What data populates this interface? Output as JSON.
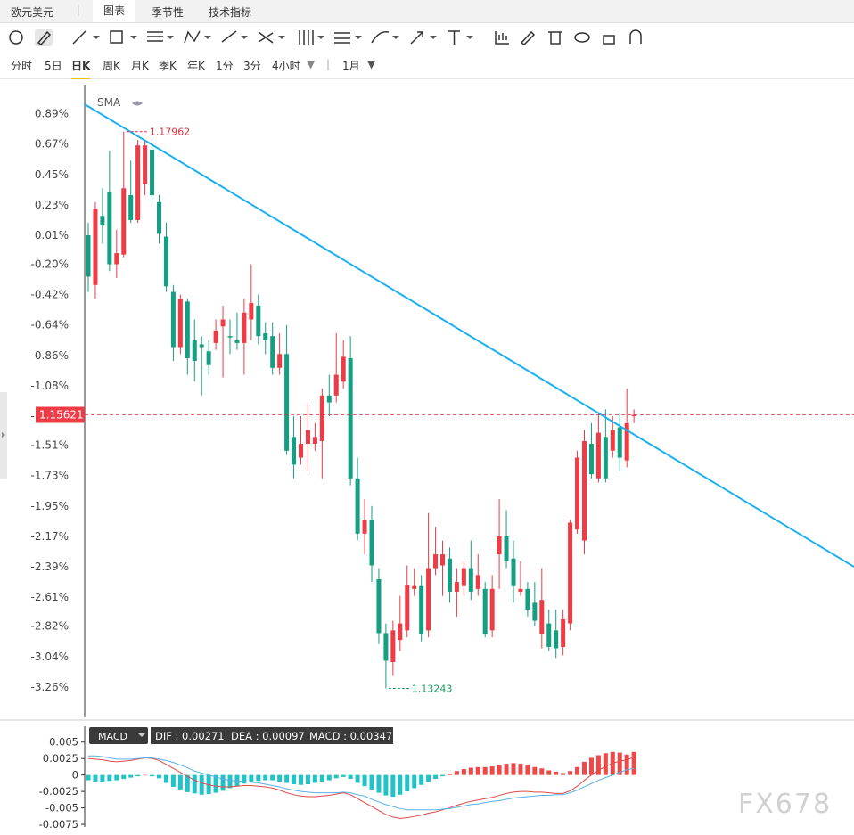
{
  "header": {
    "symbol": "欧元美元",
    "tabs": [
      "图表",
      "季节性",
      "技术指标"
    ]
  },
  "periods": [
    "分时",
    "5日",
    "日K",
    "周K",
    "月K",
    "季K",
    "年K",
    "1分",
    "3分",
    "4小时"
  ],
  "interval": "1月",
  "chart_data": [
    {
      "type": "candlestick",
      "indicator": "SMA",
      "up_color": "#ee3b45",
      "down_color": "#159e82",
      "open": [
        0.01,
        -0.35,
        0.15,
        0.32,
        -0.2,
        -0.13,
        0.3,
        0.12,
        0.38,
        0.63,
        0.25,
        0.0,
        -0.4,
        -0.8,
        -0.47,
        -0.75,
        -0.78,
        -0.83,
        -0.77,
        -0.65,
        -0.72,
        -0.75,
        -0.77,
        -0.6,
        -0.5,
        -0.7,
        -0.72,
        -0.95,
        -0.85,
        -1.45,
        -1.6,
        -1.5,
        -1.5,
        -1.48,
        -1.15,
        -1.15,
        -1.05,
        -0.88,
        -1.75,
        -2.15,
        -2.05,
        -2.48,
        -2.87,
        -3.08,
        -2.92,
        -2.85,
        -2.55,
        -2.53,
        -2.85,
        -2.4,
        -2.38,
        -2.33,
        -2.57,
        -2.53,
        -2.4,
        -2.55,
        -2.55,
        -2.85,
        -2.3,
        -2.17,
        -2.33,
        -2.57,
        -2.55,
        -2.65,
        -2.88,
        -2.8,
        -2.85,
        -2.97,
        -2.8,
        -2.12,
        -2.2,
        -1.5,
        -1.75,
        -1.45,
        -1.55,
        -1.38,
        -1.62,
        -1.3
      ],
      "high": [
        0.1,
        0.25,
        0.35,
        0.62,
        0.05,
        0.76,
        0.55,
        0.7,
        0.7,
        0.69,
        0.3,
        0.1,
        -0.35,
        -0.42,
        -0.45,
        -0.6,
        -0.72,
        -0.75,
        -0.6,
        -0.5,
        -0.6,
        -0.55,
        -0.45,
        -0.2,
        -0.42,
        -0.62,
        -0.62,
        -0.7,
        -0.64,
        -1.3,
        -1.3,
        -1.2,
        -1.35,
        -1.1,
        -1.0,
        -0.7,
        -0.75,
        -0.72,
        -1.6,
        -1.9,
        -1.95,
        -2.4,
        -2.8,
        -2.78,
        -2.6,
        -2.38,
        -2.4,
        -2.45,
        -2.0,
        -2.1,
        -2.2,
        -2.25,
        -2.4,
        -2.35,
        -2.2,
        -2.3,
        -2.5,
        -2.45,
        -1.9,
        -1.98,
        -2.2,
        -2.35,
        -2.5,
        -2.5,
        -2.4,
        -2.7,
        -2.7,
        -2.7,
        -2.05,
        -1.55,
        -1.4,
        -1.35,
        -1.28,
        -1.25,
        -1.3,
        -1.28,
        -1.1,
        -1.25
      ],
      "low": [
        -0.4,
        -0.45,
        -0.05,
        -0.25,
        -0.3,
        -0.15,
        0.1,
        0.1,
        0.3,
        0.25,
        -0.05,
        -0.4,
        -0.9,
        -0.85,
        -1.0,
        -1.05,
        -1.15,
        -1.0,
        -0.82,
        -1.02,
        -0.85,
        -0.82,
        -1.0,
        -0.75,
        -0.78,
        -0.85,
        -1.0,
        -1.0,
        -1.58,
        -1.75,
        -1.65,
        -1.7,
        -1.55,
        -1.75,
        -1.3,
        -1.2,
        -1.1,
        -1.8,
        -2.2,
        -2.3,
        -2.5,
        -2.95,
        -3.27,
        -3.18,
        -3.0,
        -2.9,
        -2.6,
        -2.93,
        -2.9,
        -2.45,
        -2.6,
        -2.65,
        -2.75,
        -2.6,
        -2.63,
        -2.6,
        -2.9,
        -2.9,
        -2.55,
        -2.4,
        -2.65,
        -2.6,
        -2.75,
        -2.82,
        -2.98,
        -3.0,
        -3.05,
        -3.03,
        -2.85,
        -2.15,
        -2.3,
        -1.75,
        -1.78,
        -1.78,
        -1.6,
        -1.7,
        -1.67,
        -1.35
      ],
      "close": [
        -0.29,
        0.2,
        0.08,
        -0.2,
        -0.12,
        0.35,
        0.12,
        0.66,
        0.66,
        0.3,
        0.02,
        -0.36,
        -0.8,
        -0.45,
        -0.88,
        -0.9,
        -0.8,
        -0.93,
        -0.68,
        -0.6,
        -0.73,
        -0.77,
        -0.55,
        -0.48,
        -0.72,
        -0.75,
        -0.95,
        -0.85,
        -1.55,
        -1.65,
        -1.5,
        -1.4,
        -1.45,
        -1.15,
        -1.2,
        -1.0,
        -0.87,
        -1.75,
        -2.15,
        -2.05,
        -2.38,
        -2.87,
        -3.07,
        -2.85,
        -2.8,
        -2.52,
        -2.53,
        -2.88,
        -2.4,
        -2.3,
        -2.3,
        -2.57,
        -2.5,
        -2.4,
        -2.57,
        -2.45,
        -2.88,
        -2.55,
        -2.17,
        -2.35,
        -2.53,
        -2.55,
        -2.7,
        -2.78,
        -2.63,
        -2.97,
        -2.98,
        -2.77,
        -2.07,
        -1.6,
        -1.48,
        -1.72,
        -1.42,
        -1.75,
        -1.4,
        -1.6,
        -1.35,
        -1.29
      ],
      "ylim": [
        -3.48,
        1.1
      ],
      "yticks": [
        {
          "value": 0.89,
          "label": "0.89%"
        },
        {
          "value": 0.67,
          "label": "0.67%"
        },
        {
          "value": 0.45,
          "label": "0.45%"
        },
        {
          "value": 0.23,
          "label": "0.23%"
        },
        {
          "value": 0.01,
          "label": "0.01%"
        },
        {
          "value": -0.2,
          "label": "-0.20%"
        },
        {
          "value": -0.42,
          "label": "-0.42%"
        },
        {
          "value": -0.64,
          "label": "-0.64%"
        },
        {
          "value": -0.86,
          "label": "-0.86%"
        },
        {
          "value": -1.08,
          "label": "-1.08%"
        },
        {
          "value": -1.3,
          "label": "-1.30%"
        },
        {
          "value": -1.51,
          "label": "-1.51%"
        },
        {
          "value": -1.73,
          "label": "-1.73%"
        },
        {
          "value": -1.95,
          "label": "-1.95%"
        },
        {
          "value": -2.17,
          "label": "-2.17%"
        },
        {
          "value": -2.39,
          "label": "-2.39%"
        },
        {
          "value": -2.61,
          "label": "-2.61%"
        },
        {
          "value": -2.82,
          "label": "-2.82%"
        },
        {
          "value": -3.04,
          "label": "-3.04%"
        },
        {
          "value": -3.26,
          "label": "-3.26%"
        }
      ],
      "current_price_label": "1.15621",
      "high_label": "1.17962",
      "low_label": "1.13243"
    },
    {
      "type": "macd",
      "title": "MACD",
      "dif_label": "DIF : 0.00271",
      "dea_label": "DEA : 0.00097",
      "macd_label": "MACD : 0.00347",
      "up_color": "#f04848",
      "down_color": "#20c4c8",
      "dif_color": "#e04a4a",
      "dea_color": "#5ab0e6",
      "histogram": [
        -0.0008,
        -0.001,
        -0.001,
        -0.0009,
        -0.0008,
        -0.0006,
        -0.0004,
        -0.0002,
        0.0,
        -0.0002,
        -0.0005,
        -0.0012,
        -0.0018,
        -0.0022,
        -0.0026,
        -0.0028,
        -0.003,
        -0.0029,
        -0.0027,
        -0.0024,
        -0.002,
        -0.0017,
        -0.0013,
        -0.001,
        -0.0009,
        -0.0008,
        -0.0008,
        -0.001,
        -0.0012,
        -0.0014,
        -0.0015,
        -0.0014,
        -0.0012,
        -0.001,
        -0.0008,
        -0.0005,
        -0.0003,
        -0.0006,
        -0.0012,
        -0.0017,
        -0.0022,
        -0.0027,
        -0.0031,
        -0.0033,
        -0.003,
        -0.0025,
        -0.002,
        -0.0015,
        -0.001,
        -0.0006,
        -0.0002,
        0.0002,
        0.0006,
        0.0009,
        0.0011,
        0.0012,
        0.0012,
        0.0013,
        0.0015,
        0.0017,
        0.0018,
        0.0017,
        0.0015,
        0.0012,
        0.001,
        0.0007,
        0.0005,
        0.0003,
        0.0006,
        0.0012,
        0.002,
        0.0026,
        0.003,
        0.0033,
        0.0035,
        0.0034,
        0.0031,
        0.0035
      ],
      "dif": [
        0.0025,
        0.0024,
        0.0023,
        0.0021,
        0.002,
        0.0021,
        0.0022,
        0.0024,
        0.0026,
        0.0025,
        0.0022,
        0.0016,
        0.001,
        0.0004,
        -0.0002,
        -0.0008,
        -0.0012,
        -0.0015,
        -0.0017,
        -0.0018,
        -0.0018,
        -0.0017,
        -0.0016,
        -0.0016,
        -0.0017,
        -0.0018,
        -0.002,
        -0.0023,
        -0.0027,
        -0.003,
        -0.0032,
        -0.0033,
        -0.0033,
        -0.0032,
        -0.0031,
        -0.0029,
        -0.0027,
        -0.003,
        -0.0036,
        -0.0042,
        -0.0048,
        -0.0054,
        -0.006,
        -0.0064,
        -0.0066,
        -0.0065,
        -0.0063,
        -0.0061,
        -0.0058,
        -0.0056,
        -0.0053,
        -0.005,
        -0.0046,
        -0.0043,
        -0.004,
        -0.0038,
        -0.0036,
        -0.0034,
        -0.0031,
        -0.0028,
        -0.0026,
        -0.0025,
        -0.0025,
        -0.0026,
        -0.0026,
        -0.0027,
        -0.0028,
        -0.0028,
        -0.0024,
        -0.0017,
        -0.0008,
        0.0,
        0.0007,
        0.0013,
        0.0018,
        0.0021,
        0.0023,
        0.0027
      ],
      "dea": [
        0.0029,
        0.0029,
        0.0028,
        0.0026,
        0.0024,
        0.0024,
        0.0024,
        0.0025,
        0.0026,
        0.0026,
        0.0024,
        0.0022,
        0.0019,
        0.0015,
        0.0011,
        0.0006,
        0.0003,
        0.0,
        -0.0003,
        -0.0006,
        -0.0008,
        -0.0009,
        -0.001,
        -0.0011,
        -0.0012,
        -0.0014,
        -0.0016,
        -0.0018,
        -0.0021,
        -0.0023,
        -0.0025,
        -0.0026,
        -0.0027,
        -0.0027,
        -0.0027,
        -0.0027,
        -0.0026,
        -0.0027,
        -0.003,
        -0.0032,
        -0.0037,
        -0.0041,
        -0.0045,
        -0.0048,
        -0.0051,
        -0.0053,
        -0.0053,
        -0.0053,
        -0.0053,
        -0.0053,
        -0.0052,
        -0.0051,
        -0.0049,
        -0.0047,
        -0.0045,
        -0.0044,
        -0.0042,
        -0.004,
        -0.0039,
        -0.0037,
        -0.0035,
        -0.0034,
        -0.0033,
        -0.0032,
        -0.0031,
        -0.0031,
        -0.003,
        -0.003,
        -0.0027,
        -0.0023,
        -0.0018,
        -0.0013,
        -0.0008,
        -0.0004,
        0.0,
        0.0004,
        0.0008,
        0.001
      ],
      "ylim": [
        -0.0079,
        0.0074
      ],
      "yticks": [
        0.005,
        0.0025,
        0,
        -0.0025,
        -0.005,
        -0.0075
      ]
    }
  ],
  "watermark": "FX678"
}
